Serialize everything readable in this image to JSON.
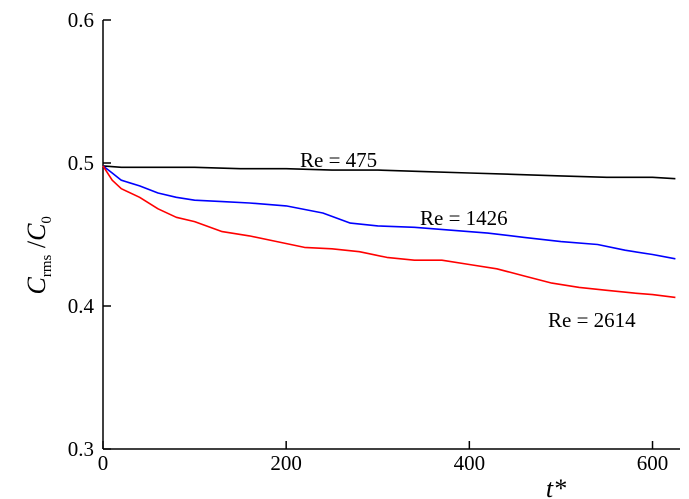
{
  "chart_data": {
    "type": "line",
    "title": "",
    "xlabel": "t*",
    "ylabel": {
      "base": "C",
      "sub": "rms",
      "slash": " /",
      "base2": "C",
      "sub2": "0"
    },
    "xlim": [
      0,
      630
    ],
    "ylim": [
      0.3,
      0.6
    ],
    "xticks": [
      0,
      200,
      400,
      600
    ],
    "xtick_labels": [
      "0",
      "200",
      "400",
      "600"
    ],
    "yticks": [
      0.3,
      0.4,
      0.5,
      0.6
    ],
    "ytick_labels": [
      "0.3",
      "0.4",
      "0.5",
      "0.6"
    ],
    "grid": false,
    "legend": "none",
    "series": [
      {
        "name": "Re = 475",
        "color": "#000000",
        "x": [
          0,
          20,
          50,
          80,
          100,
          150,
          200,
          250,
          300,
          350,
          400,
          450,
          500,
          550,
          600,
          625
        ],
        "y": [
          0.498,
          0.497,
          0.497,
          0.497,
          0.497,
          0.496,
          0.496,
          0.495,
          0.495,
          0.494,
          0.493,
          0.492,
          0.491,
          0.49,
          0.49,
          0.489
        ]
      },
      {
        "name": "Re = 1426",
        "color": "#0000ff",
        "x": [
          0,
          10,
          20,
          40,
          60,
          80,
          100,
          130,
          160,
          200,
          240,
          270,
          300,
          340,
          380,
          420,
          460,
          500,
          540,
          570,
          600,
          625
        ],
        "y": [
          0.498,
          0.493,
          0.488,
          0.484,
          0.479,
          0.476,
          0.474,
          0.473,
          0.472,
          0.47,
          0.465,
          0.458,
          0.456,
          0.455,
          0.453,
          0.451,
          0.448,
          0.445,
          0.443,
          0.439,
          0.436,
          0.433
        ]
      },
      {
        "name": "Re = 2614",
        "color": "#ff0000",
        "x": [
          0,
          10,
          20,
          40,
          60,
          80,
          100,
          130,
          160,
          190,
          220,
          250,
          280,
          310,
          340,
          370,
          400,
          430,
          460,
          490,
          520,
          550,
          580,
          600,
          625
        ],
        "y": [
          0.498,
          0.488,
          0.482,
          0.476,
          0.468,
          0.462,
          0.459,
          0.452,
          0.449,
          0.445,
          0.441,
          0.44,
          0.438,
          0.434,
          0.432,
          0.432,
          0.429,
          0.426,
          0.421,
          0.416,
          0.413,
          0.411,
          0.409,
          0.408,
          0.406
        ]
      }
    ],
    "annotations": [
      {
        "text": "Re = 475",
        "series": 0
      },
      {
        "text": "Re = 1426",
        "series": 1
      },
      {
        "text": "Re = 2614",
        "series": 2
      }
    ]
  }
}
